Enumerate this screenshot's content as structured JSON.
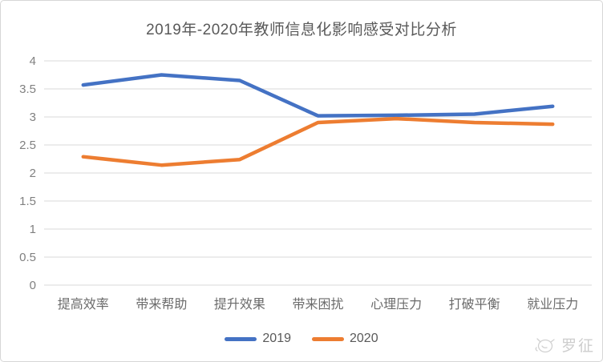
{
  "window": {
    "background": "#ffffff",
    "border_color": "#d6d6d6"
  },
  "chart_data": {
    "type": "line",
    "title": "2019年-2020年教师信息化影响感受对比分析",
    "categories": [
      "提高效率",
      "带来帮助",
      "提升效果",
      "带来困扰",
      "心理压力",
      "打破平衡",
      "就业压力"
    ],
    "series": [
      {
        "name": "2019",
        "color": "#4472C4",
        "values": [
          3.57,
          3.75,
          3.65,
          3.02,
          3.03,
          3.05,
          3.19
        ]
      },
      {
        "name": "2020",
        "color": "#ED7D31",
        "values": [
          2.29,
          2.14,
          2.24,
          2.9,
          2.97,
          2.9,
          2.87
        ]
      }
    ],
    "xlabel": "",
    "ylabel": "",
    "ylim": [
      0,
      4
    ],
    "ytick_step": 0.5,
    "yticks": [
      "0",
      "0.5",
      "1",
      "1.5",
      "2",
      "2.5",
      "3",
      "3.5",
      "4"
    ],
    "grid": true,
    "legend_position": "bottom",
    "gridline_color": "#d9d9d9",
    "tick_label_color": "#808080",
    "category_label_color": "#6b6b6b",
    "title_color": "#595959"
  },
  "watermark": {
    "text": "罗征",
    "icon": "sketch-logo-icon"
  }
}
